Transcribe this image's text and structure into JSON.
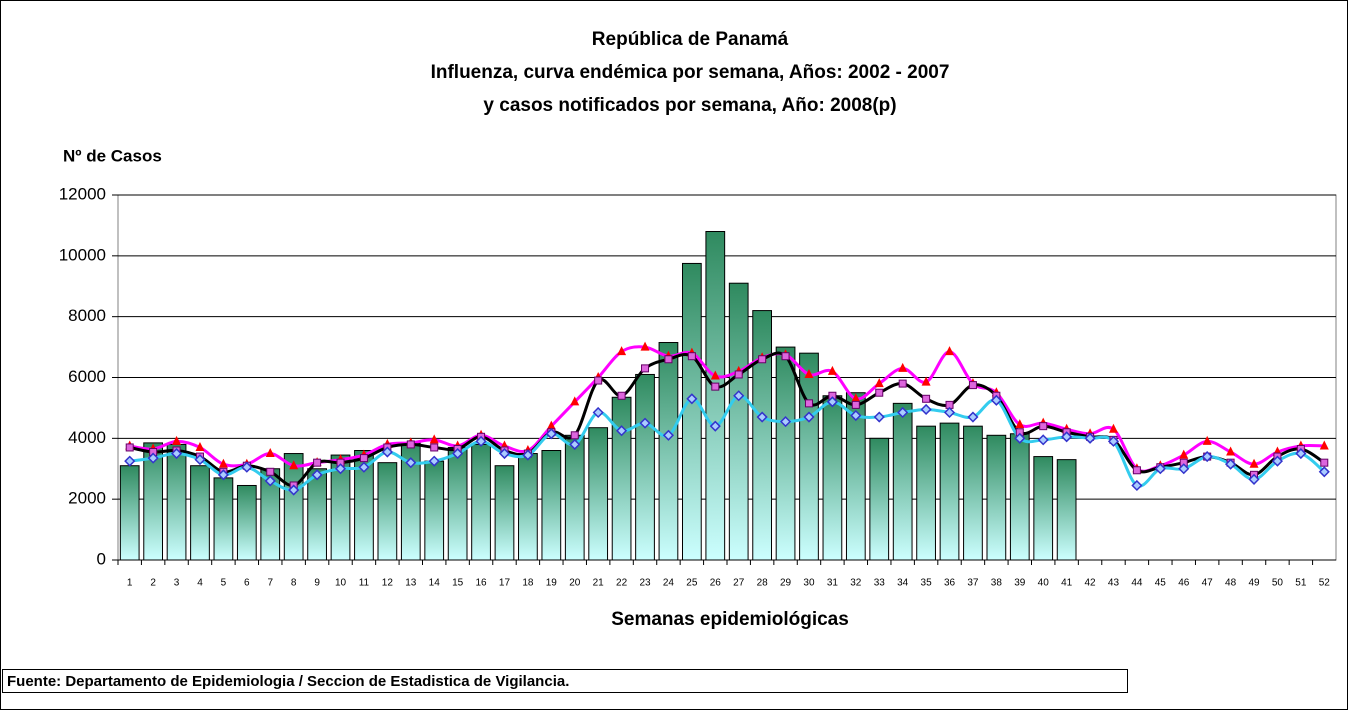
{
  "chart_data": {
    "type": "bar",
    "title_lines": [
      "República de Panamá",
      "Influenza, curva endémica por semana, Años: 2002 - 2007",
      "y casos notificados por semana, Año: 2008(p)"
    ],
    "y_label": "Nº de Casos",
    "x_label": "Semanas epidemiológicas",
    "source": "Fuente: Departamento de Epidemiologia / Seccion de Estadistica de Vigilancia.",
    "categories": [
      "1",
      "2",
      "3",
      "4",
      "5",
      "6",
      "7",
      "8",
      "9",
      "10",
      "11",
      "12",
      "13",
      "14",
      "15",
      "16",
      "17",
      "18",
      "19",
      "20",
      "21",
      "22",
      "23",
      "24",
      "25",
      "26",
      "27",
      "28",
      "29",
      "30",
      "31",
      "32",
      "33",
      "34",
      "35",
      "36",
      "37",
      "38",
      "39",
      "40",
      "41",
      "42",
      "43",
      "44",
      "45",
      "46",
      "47",
      "48",
      "49",
      "50",
      "51",
      "52"
    ],
    "ylim": [
      0,
      12000
    ],
    "yticks": [
      0,
      2000,
      4000,
      6000,
      8000,
      10000,
      12000
    ],
    "grid": true,
    "series": [
      {
        "type": "bar",
        "color": "#2f8a5f",
        "color_bottom": "#ccffff",
        "values": [
          3100,
          3850,
          3800,
          3100,
          2700,
          2450,
          3000,
          3500,
          3000,
          3450,
          3600,
          3200,
          3850,
          3250,
          3700,
          3800,
          3100,
          3500,
          3600,
          4100,
          4350,
          5350,
          6100,
          7150,
          9750,
          10800,
          9100,
          8200,
          7000,
          6800,
          5400,
          5500,
          4000,
          5150,
          4400,
          4500,
          4400,
          4100,
          4150,
          3400,
          3300,
          null,
          null,
          null,
          null,
          null,
          null,
          null,
          null,
          null,
          null,
          null
        ]
      },
      {
        "type": "line",
        "color": "#ff00ff",
        "marker": "triangle",
        "marker_color": "#ff0000",
        "values": [
          3750,
          3650,
          3900,
          3700,
          3150,
          3150,
          3500,
          3100,
          3200,
          3300,
          3450,
          3800,
          3850,
          3950,
          3750,
          4100,
          3750,
          3600,
          4400,
          5200,
          6000,
          6850,
          7000,
          6700,
          6800,
          6050,
          6200,
          6650,
          6750,
          6100,
          6200,
          5300,
          5800,
          6300,
          5850,
          6850,
          5800,
          5500,
          4450,
          4500,
          4300,
          4150,
          4300,
          3000,
          3100,
          3450,
          3900,
          3550,
          3150,
          3550,
          3750,
          3750
        ]
      },
      {
        "type": "line",
        "color": "#000000",
        "marker": "square",
        "marker_color": "#dd66dd",
        "values": [
          3700,
          3550,
          3600,
          3400,
          2900,
          3100,
          2900,
          2450,
          3200,
          3200,
          3350,
          3700,
          3800,
          3700,
          3650,
          4050,
          3600,
          3500,
          4200,
          4100,
          5900,
          5400,
          6300,
          6600,
          6700,
          5700,
          6100,
          6600,
          6700,
          5150,
          5400,
          5100,
          5500,
          5800,
          5300,
          5100,
          5750,
          5400,
          4200,
          4400,
          4200,
          4050,
          3950,
          2950,
          3050,
          3200,
          3400,
          3200,
          2800,
          3400,
          3650,
          3200
        ]
      },
      {
        "type": "line",
        "color": "#33ccee",
        "marker": "diamond",
        "marker_color": "#3333cc",
        "values": [
          3250,
          3350,
          3500,
          3300,
          2800,
          3050,
          2600,
          2300,
          2800,
          3000,
          3050,
          3550,
          3200,
          3250,
          3500,
          3900,
          3500,
          3450,
          4150,
          3800,
          4850,
          4250,
          4500,
          4100,
          5300,
          4400,
          5400,
          4700,
          4550,
          4700,
          5200,
          4750,
          4700,
          4850,
          4950,
          4850,
          4700,
          5250,
          4000,
          3950,
          4050,
          4000,
          3900,
          2450,
          3000,
          3000,
          3400,
          3150,
          2650,
          3250,
          3500,
          2900
        ]
      }
    ]
  }
}
